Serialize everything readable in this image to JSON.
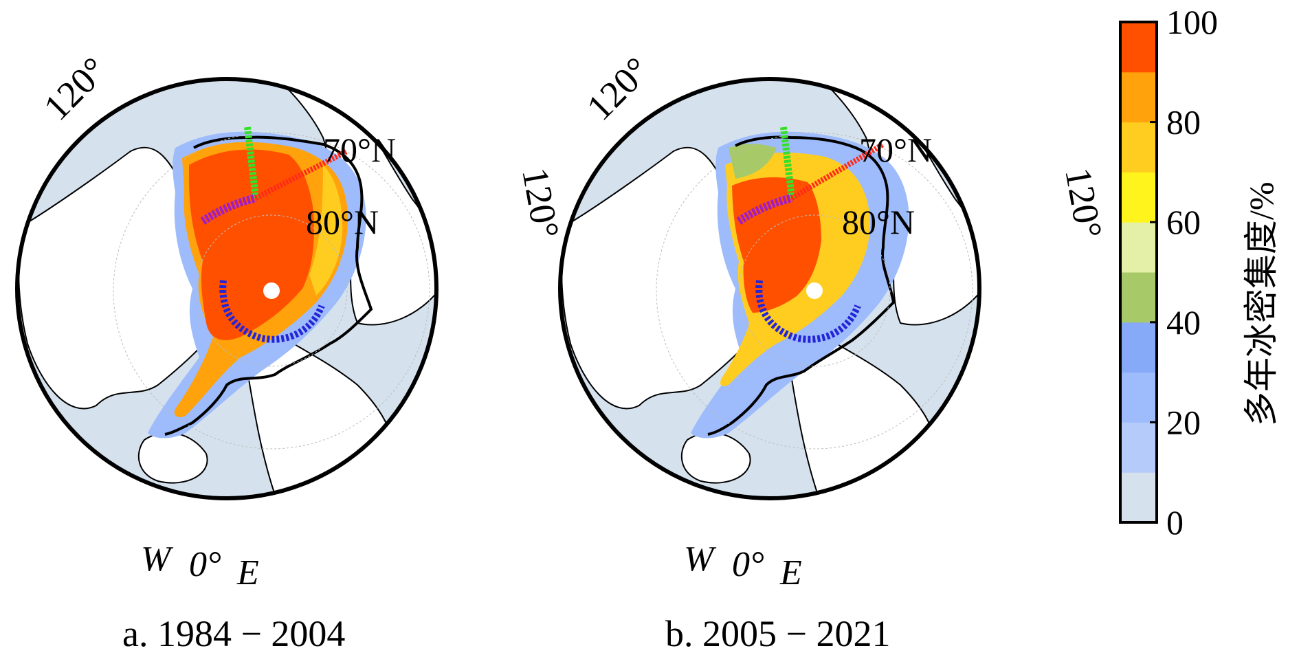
{
  "panels": [
    {
      "caption": "a. 1984 − 2004",
      "lon_label_top_left": "120°",
      "lon_label_right": "120°",
      "lat_label_70": "70°N",
      "lat_label_80": "80°N",
      "bottom_w": "W",
      "bottom_0": "0°",
      "bottom_e": "E"
    },
    {
      "caption": "b. 2005 − 2021",
      "lon_label_top_left": "120°",
      "lon_label_right": "120°",
      "lat_label_70": "70°N",
      "lat_label_80": "80°N",
      "bottom_w": "W",
      "bottom_0": "0°",
      "bottom_e": "E"
    }
  ],
  "colorbar": {
    "label": "多年冰密集度/%",
    "ticks": [
      "0",
      "20",
      "40",
      "60",
      "80",
      "100"
    ],
    "colors": [
      "#d5e2ee",
      "#b5ccfb",
      "#9ebcfb",
      "#86aaf8",
      "#a7c968",
      "#e4f0a8",
      "#fff51c",
      "#ffcd1f",
      "#ffa20c",
      "#ff5000"
    ]
  },
  "track_colors": {
    "green": "#35e02a",
    "red": "#ff2a1a",
    "purple": "#a21ec0",
    "blue": "#2424d8"
  }
}
